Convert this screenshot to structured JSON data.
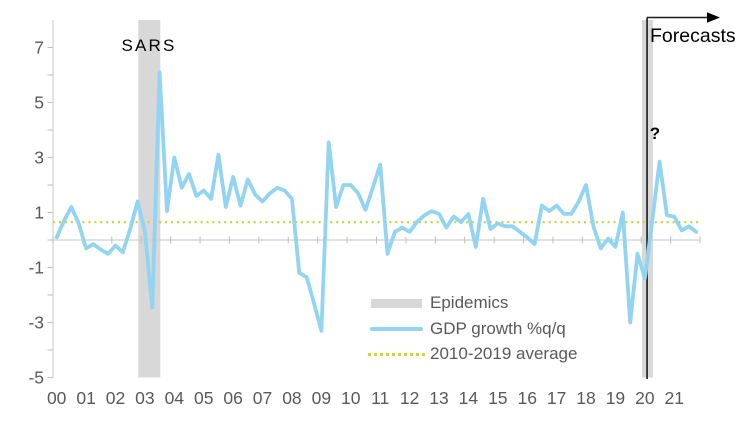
{
  "chart_data": {
    "type": "line",
    "title": "",
    "x_start": "2000Q1",
    "x_end": "2021Q4",
    "quarters": 88,
    "x_tick_labels": [
      "00",
      "01",
      "02",
      "03",
      "04",
      "05",
      "06",
      "07",
      "08",
      "09",
      "10",
      "11",
      "12",
      "13",
      "14",
      "15",
      "16",
      "17",
      "18",
      "19",
      "20",
      "21"
    ],
    "y_tick_labels": [
      "7",
      "5",
      "3",
      "1",
      "-1",
      "-3",
      "-5"
    ],
    "y_tick_values": [
      7,
      5,
      3,
      1,
      -1,
      -3,
      -5
    ],
    "ylim": [
      -5,
      8
    ],
    "grid": "zero-line-only",
    "legend_position": "inside-bottom-right",
    "series": [
      {
        "name": "GDP growth %q/q",
        "values": [
          0.1,
          0.7,
          1.2,
          0.6,
          -0.3,
          -0.15,
          -0.35,
          -0.5,
          -0.2,
          -0.45,
          0.4,
          1.4,
          0.3,
          -2.45,
          6.1,
          1.05,
          3.0,
          1.9,
          2.4,
          1.6,
          1.8,
          1.5,
          3.1,
          1.2,
          2.3,
          1.25,
          2.2,
          1.65,
          1.4,
          1.7,
          1.9,
          1.8,
          1.5,
          -1.2,
          -1.35,
          -2.3,
          -3.3,
          3.55,
          1.2,
          2.0,
          2.0,
          1.7,
          1.1,
          1.9,
          2.75,
          -0.5,
          0.3,
          0.45,
          0.3,
          0.65,
          0.9,
          1.05,
          0.95,
          0.45,
          0.85,
          0.65,
          0.95,
          -0.25,
          1.5,
          0.4,
          0.6,
          0.5,
          0.5,
          0.3,
          0.1,
          -0.15,
          1.25,
          1.05,
          1.25,
          0.95,
          0.95,
          1.4,
          2.0,
          0.5,
          -0.3,
          0.05,
          -0.25,
          1.0,
          -3.0,
          -0.5,
          -1.4,
          0.7,
          2.85,
          0.9,
          0.85,
          0.35,
          0.5,
          0.3
        ]
      }
    ],
    "average_line": {
      "name": "2010-2019 average",
      "value": 0.65
    },
    "epidemic_bands": [
      {
        "label": "SARS",
        "start_q": 11.6,
        "end_q": 14.6
      },
      {
        "label": "?",
        "start_q": 80.1,
        "end_q": 81.6
      }
    ],
    "forecast_divider_q": 80.8
  },
  "annotations": {
    "sars": "SARS",
    "question_mark": "?",
    "forecasts": "Forecasts"
  },
  "legend": {
    "items": [
      {
        "label": "Epidemics",
        "swatch": "band"
      },
      {
        "label": "GDP growth %q/q",
        "swatch": "line"
      },
      {
        "label": "2010-2019 average",
        "swatch": "dotted"
      }
    ]
  },
  "colors": {
    "gdp_line": "#92d4f1",
    "average_line": "#c3d843",
    "epidemic_band": "#d8d8d8",
    "axis_line": "#d0d0d0",
    "tick": "#bdbdbd",
    "axis_text": "#595959",
    "annotation": "#000000"
  }
}
